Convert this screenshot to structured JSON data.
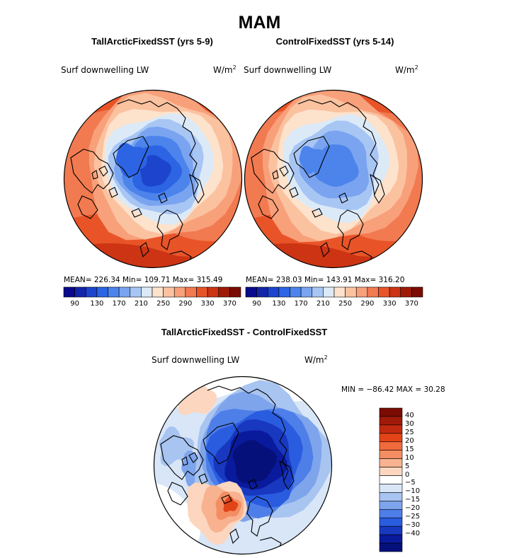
{
  "title": "MAM",
  "panels": [
    {
      "title": "TallArcticFixedSST (yrs 5-9)",
      "variable": "Surf downwelling LW",
      "units_base": "W/m",
      "units_exp": "2",
      "stats": "MEAN= 226.34   Min= 109.71   Max= 315.49",
      "field_style": "strong-cold"
    },
    {
      "title": "ControlFixedSST (yrs 5-14)",
      "variable": "Surf downwelling LW",
      "units_base": "W/m",
      "units_exp": "2",
      "stats": "MEAN= 238.03   Min= 143.91   Max= 316.20",
      "field_style": "moderate-cold"
    }
  ],
  "diff_panel": {
    "title": "TallArcticFixedSST - ControlFixedSST",
    "variable": "Surf downwelling LW",
    "units_base": "W/m",
    "units_exp": "2",
    "stats": "MIN = −86.42  MAX =   30.28"
  },
  "colors": {
    "abs_colorbar": [
      "#0a0a8c",
      "#1326a8",
      "#1c44cc",
      "#2c64e4",
      "#4c84ec",
      "#7aa4f0",
      "#a8c6f4",
      "#dceaf8",
      "#fde2cc",
      "#fbc2a0",
      "#f8a07a",
      "#f27a50",
      "#e85428",
      "#cc3414",
      "#9e1a08",
      "#7a0c04"
    ],
    "diff_colorbar": [
      "#7a0c04",
      "#a01a0a",
      "#c22a10",
      "#e24418",
      "#f06a3c",
      "#f48e62",
      "#f8b290",
      "#fcd6be",
      "#ffffff",
      "#d8e6f8",
      "#a8c4f0",
      "#7ea4ec",
      "#4e7ee8",
      "#2a5ce0",
      "#1838c0",
      "#0a1a9c",
      "#06107a"
    ],
    "coast": "#000000"
  },
  "chart_data": [
    {
      "type": "heatmap",
      "projection": "north-polar-stereographic",
      "title": "TallArcticFixedSST (yrs 5-9)",
      "variable": "Surf downwelling LW",
      "units": "W/m2",
      "mean": 226.34,
      "min": 109.71,
      "max": 315.49,
      "colorbar_levels": [
        90,
        110,
        130,
        150,
        170,
        190,
        210,
        230,
        250,
        270,
        290,
        310,
        330,
        350,
        370
      ],
      "colorbar_tick_labels": [
        "90",
        "130",
        "170",
        "210",
        "250",
        "290",
        "330",
        "370"
      ]
    },
    {
      "type": "heatmap",
      "projection": "north-polar-stereographic",
      "title": "ControlFixedSST (yrs 5-14)",
      "variable": "Surf downwelling LW",
      "units": "W/m2",
      "mean": 238.03,
      "min": 143.91,
      "max": 316.2,
      "colorbar_levels": [
        90,
        110,
        130,
        150,
        170,
        190,
        210,
        230,
        250,
        270,
        290,
        310,
        330,
        350,
        370
      ],
      "colorbar_tick_labels": [
        "90",
        "130",
        "170",
        "210",
        "250",
        "290",
        "330",
        "370"
      ]
    },
    {
      "type": "heatmap",
      "projection": "north-polar-stereographic",
      "title": "TallArcticFixedSST - ControlFixedSST",
      "variable": "Surf downwelling LW",
      "units": "W/m2",
      "min": -86.42,
      "max": 30.28,
      "colorbar_levels": [
        40,
        30,
        25,
        20,
        15,
        10,
        5,
        0,
        -5,
        -10,
        -15,
        -20,
        -25,
        -30,
        -40
      ],
      "colorbar_tick_labels": [
        "40",
        "30",
        "25",
        "20",
        "15",
        "10",
        "5",
        "0",
        "−5",
        "−10",
        "−15",
        "−20",
        "−25",
        "−30",
        "−40"
      ]
    }
  ]
}
